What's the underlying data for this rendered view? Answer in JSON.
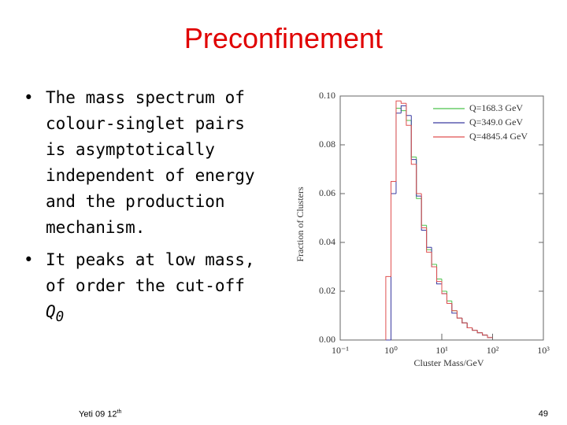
{
  "title": "Preconfinement",
  "bullets": [
    {
      "text": "The mass spectrum of colour-singlet pairs is asymptotically independent of energy and the production mechanism."
    },
    {
      "text": "It peaks at low mass, of order the cut-off ",
      "symbol": "Q",
      "subscript": "0"
    }
  ],
  "footer": {
    "left": "Yeti 09 12",
    "left_sup": "th",
    "page": "49"
  },
  "chart_data": {
    "type": "histogram",
    "xlabel": "Cluster Mass/GeV",
    "ylabel": "Fraction of Clusters",
    "log_x": true,
    "bins": [
      0.79,
      1,
      1.26,
      1.58,
      2,
      2.51,
      3.16,
      3.98,
      5.01,
      6.31,
      7.94,
      10,
      12.6,
      15.8,
      20,
      25.1,
      31.6,
      39.8,
      50.1,
      63.1,
      79.4,
      100
    ],
    "series": [
      {
        "name": "Q=168.3 GeV",
        "color": "#4cc24c",
        "values": [
          0,
          0.065,
          0.095,
          0.094,
          0.09,
          0.075,
          0.058,
          0.047,
          0.037,
          0.031,
          0.025,
          0.02,
          0.016,
          0.012,
          0.009,
          0.007,
          0.005,
          0.004,
          0.003,
          0.002,
          0.001
        ]
      },
      {
        "name": "Q=349.0 GeV",
        "color": "#3a3aa0",
        "values": [
          0,
          0.06,
          0.093,
          0.096,
          0.092,
          0.074,
          0.059,
          0.045,
          0.038,
          0.03,
          0.023,
          0.019,
          0.015,
          0.011,
          0.009,
          0.007,
          0.005,
          0.004,
          0.003,
          0.002,
          0.001
        ]
      },
      {
        "name": "Q=4845.4 GeV",
        "color": "#e05050",
        "values": [
          0.026,
          0.065,
          0.098,
          0.097,
          0.088,
          0.072,
          0.06,
          0.046,
          0.036,
          0.03,
          0.024,
          0.019,
          0.015,
          0.012,
          0.009,
          0.007,
          0.005,
          0.004,
          0.003,
          0.002,
          0.001
        ]
      }
    ],
    "xlim": [
      0.1,
      1000
    ],
    "xticks": [
      {
        "value": 0.1,
        "label": "10⁻¹"
      },
      {
        "value": 1,
        "label": "10⁰"
      },
      {
        "value": 10,
        "label": "10¹"
      },
      {
        "value": 100,
        "label": "10²"
      },
      {
        "value": 1000,
        "label": "10³"
      }
    ],
    "ylim": [
      0,
      0.1
    ],
    "yticks": [
      {
        "value": 0,
        "label": "0.00"
      },
      {
        "value": 0.02,
        "label": "0.02"
      },
      {
        "value": 0.04,
        "label": "0.04"
      },
      {
        "value": 0.06,
        "label": "0.06"
      },
      {
        "value": 0.08,
        "label": "0.08"
      },
      {
        "value": 0.1,
        "label": "0.10"
      }
    ],
    "legend": "top-right"
  }
}
